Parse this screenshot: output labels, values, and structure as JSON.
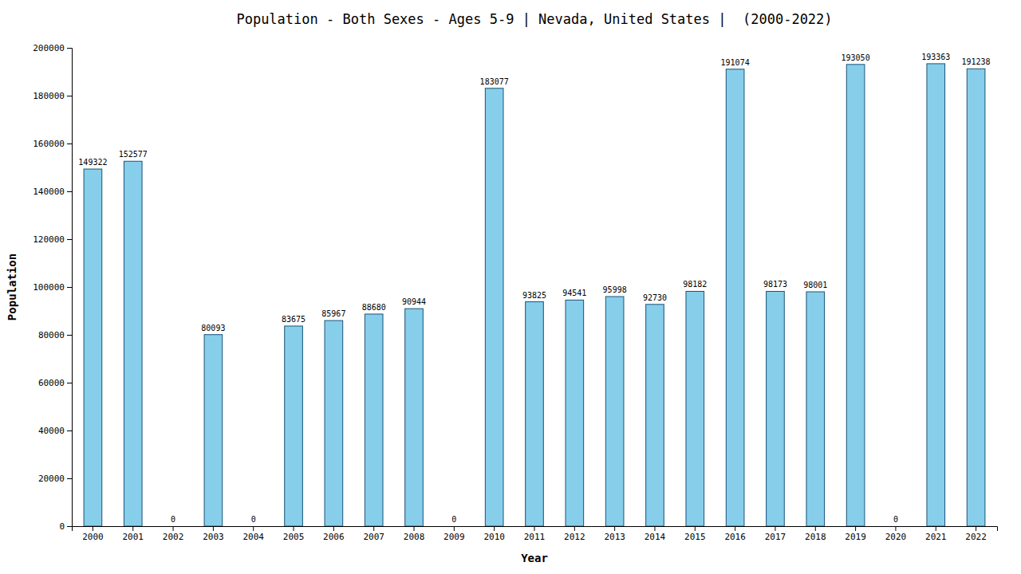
{
  "chart_data": {
    "type": "bar",
    "title": "Population - Both Sexes - Ages 5-9 | Nevada, United States |  (2000-2022)",
    "x_label": "Year",
    "y_label": "Population",
    "categories": [
      "2000",
      "2001",
      "2002",
      "2003",
      "2004",
      "2005",
      "2006",
      "2007",
      "2008",
      "2009",
      "2010",
      "2011",
      "2012",
      "2013",
      "2014",
      "2015",
      "2016",
      "2017",
      "2018",
      "2019",
      "2020",
      "2021",
      "2022"
    ],
    "values": [
      149322,
      152577,
      0,
      80093,
      0,
      83675,
      85967,
      88680,
      90944,
      0,
      183077,
      93825,
      94541,
      95998,
      92730,
      98182,
      191074,
      98173,
      98001,
      193050,
      0,
      193363,
      191238
    ],
    "color": "#87CEEB",
    "ylim": [
      0,
      200000
    ],
    "yticks": [
      0,
      20000,
      40000,
      60000,
      80000,
      100000,
      120000,
      140000,
      160000,
      180000,
      200000
    ],
    "grid": false,
    "data_labels": true
  }
}
